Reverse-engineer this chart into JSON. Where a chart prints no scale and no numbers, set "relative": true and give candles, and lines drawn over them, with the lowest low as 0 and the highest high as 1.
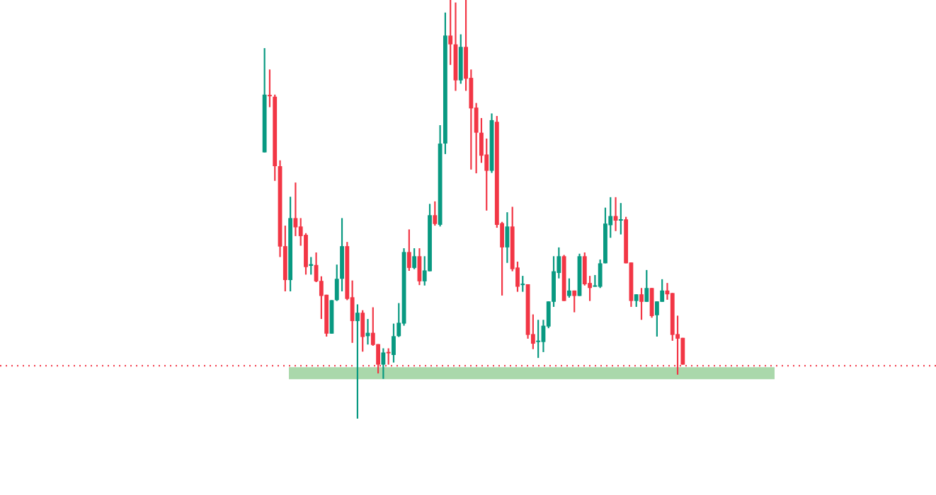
{
  "chart_data": {
    "type": "candlestick",
    "relative": true,
    "categories": [
      null,
      null,
      null,
      null,
      null,
      null,
      null,
      null,
      null,
      null,
      null,
      null,
      null,
      null,
      null,
      null,
      null,
      null,
      null,
      null,
      null,
      null,
      null,
      null,
      null,
      null,
      null,
      null,
      null,
      null,
      null,
      null,
      null,
      null,
      null,
      null,
      null,
      null,
      null,
      null,
      null,
      null,
      null,
      null,
      null,
      null,
      null,
      null,
      null,
      null,
      null,
      null,
      null,
      null,
      null,
      null,
      null,
      null,
      null,
      null,
      null,
      null,
      null,
      null,
      null,
      null,
      null,
      null,
      null,
      null,
      null,
      null,
      null,
      null,
      null,
      null,
      null,
      null,
      null,
      null,
      null,
      null
    ],
    "series": [
      {
        "colors": [
          "#089981",
          "#f23645",
          "#f23645",
          "#f23645",
          "#f23645",
          "#089981",
          "#f23645",
          "#f23645",
          "#f23645",
          "#089981",
          "#f23645",
          "#f23645",
          "#f23645",
          "#089981",
          "#089981",
          "#089981",
          "#f23645",
          "#f23645",
          "#089981",
          "#f23645",
          "#089981",
          "#f23645",
          "#f23645",
          "#089981",
          "#f23645",
          "#089981",
          "#089981",
          "#089981",
          "#f23645",
          "#089981",
          "#f23645",
          "#089981",
          "#089981",
          "#f23645",
          "#089981",
          "#089981",
          "#f23645",
          "#f23645",
          "#089981",
          "#f23645",
          "#f23645",
          "#f23645",
          "#f23645",
          "#f23645",
          "#089981",
          "#f23645",
          "#f23645",
          "#089981",
          "#f23645",
          "#f23645",
          "#089981",
          "#f23645",
          "#f23645",
          "#089981",
          "#089981",
          "#089981",
          "#089981",
          "#089981",
          "#f23645",
          "#089981",
          "#f23645",
          "#089981",
          "#f23645",
          "#f23645",
          "#089981",
          "#089981",
          "#089981",
          "#089981",
          "#f23645",
          "#089981",
          "#f23645",
          "#f23645",
          "#089981",
          "#f23645",
          "#089981",
          "#f23645",
          "#089981",
          "#089981",
          "#f23645",
          "#f23645",
          "#f23645",
          "#f23645"
        ],
        "ohlc": [
          [
            0.636,
            0.885,
            0.636,
            0.774
          ],
          [
            0.772,
            0.834,
            0.744,
            0.77
          ],
          [
            0.769,
            0.774,
            0.568,
            0.603
          ],
          [
            0.603,
            0.617,
            0.386,
            0.411
          ],
          [
            0.412,
            0.461,
            0.304,
            0.331
          ],
          [
            0.331,
            0.53,
            0.304,
            0.479
          ],
          [
            0.479,
            0.564,
            0.436,
            0.457
          ],
          [
            0.459,
            0.479,
            0.413,
            0.436
          ],
          [
            0.439,
            0.443,
            0.344,
            0.362
          ],
          [
            0.365,
            0.386,
            0.344,
            0.369
          ],
          [
            0.367,
            0.397,
            0.326,
            0.328
          ],
          [
            0.329,
            0.34,
            0.238,
            0.293
          ],
          [
            0.296,
            0.296,
            0.196,
            0.203
          ],
          [
            0.203,
            0.283,
            0.203,
            0.283
          ],
          [
            0.283,
            0.368,
            0.281,
            0.334
          ],
          [
            0.334,
            0.479,
            0.304,
            0.412
          ],
          [
            0.412,
            0.422,
            0.283,
            0.286
          ],
          [
            0.29,
            0.33,
            0.181,
            0.233
          ],
          [
            0.233,
            0.273,
            0,
            0.253
          ],
          [
            0.253,
            0.259,
            0.16,
            0.195
          ],
          [
            0.197,
            0.238,
            0.177,
            0.205
          ],
          [
            0.205,
            0.266,
            0.174,
            0.176
          ],
          [
            0.178,
            0.178,
            0.108,
            0.129
          ],
          [
            0.129,
            0.168,
            0.095,
            0.158
          ],
          [
            0.158,
            0.168,
            0.129,
            0.156
          ],
          [
            0.152,
            0.227,
            0.134,
            0.197
          ],
          [
            0.197,
            0.276,
            0.195,
            0.229
          ],
          [
            0.227,
            0.407,
            0.222,
            0.398
          ],
          [
            0.398,
            0.452,
            0.353,
            0.36
          ],
          [
            0.36,
            0.407,
            0.357,
            0.388
          ],
          [
            0.388,
            0.407,
            0.319,
            0.328
          ],
          [
            0.328,
            0.388,
            0.318,
            0.354
          ],
          [
            0.352,
            0.513,
            0.352,
            0.486
          ],
          [
            0.486,
            0.519,
            0.461,
            0.465
          ],
          [
            0.463,
            0.701,
            0.459,
            0.657
          ],
          [
            0.657,
            0.97,
            0.632,
            0.915
          ],
          [
            0.915,
            1,
            0.845,
            0.894
          ],
          [
            0.894,
            0.994,
            0.783,
            0.808
          ],
          [
            0.808,
            0.918,
            0.8,
            0.888
          ],
          [
            0.888,
            1,
            0.783,
            0.812
          ],
          [
            0.814,
            0.834,
            0.595,
            0.741
          ],
          [
            0.743,
            0.754,
            0.586,
            0.683
          ],
          [
            0.683,
            0.718,
            0.611,
            0.628
          ],
          [
            0.631,
            0.669,
            0.497,
            0.592
          ],
          [
            0.592,
            0.729,
            0.587,
            0.713
          ],
          [
            0.709,
            0.723,
            0.456,
            0.463
          ],
          [
            0.467,
            0.47,
            0.294,
            0.409
          ],
          [
            0.409,
            0.493,
            0.372,
            0.459
          ],
          [
            0.459,
            0.506,
            0.352,
            0.357
          ],
          [
            0.361,
            0.375,
            0.303,
            0.315
          ],
          [
            0.319,
            0.341,
            0.303,
            0.321
          ],
          [
            0.321,
            0.321,
            0.191,
            0.2
          ],
          [
            0.202,
            0.249,
            0.166,
            0.179
          ],
          [
            0.183,
            0.236,
            0.145,
            0.185
          ],
          [
            0.183,
            0.236,
            0.159,
            0.222
          ],
          [
            0.22,
            0.28,
            0.216,
            0.28
          ],
          [
            0.279,
            0.388,
            0.267,
            0.352
          ],
          [
            0.348,
            0.409,
            0.335,
            0.388
          ],
          [
            0.388,
            0.391,
            0.281,
            0.281
          ],
          [
            0.293,
            0.335,
            0.289,
            0.306
          ],
          [
            0.306,
            0.306,
            0.254,
            0.293
          ],
          [
            0.293,
            0.394,
            0.293,
            0.388
          ],
          [
            0.388,
            0.397,
            0.318,
            0.321
          ],
          [
            0.324,
            0.341,
            0.281,
            0.312
          ],
          [
            0.315,
            0.343,
            0.315,
            0.317
          ],
          [
            0.315,
            0.38,
            0.312,
            0.371
          ],
          [
            0.371,
            0.504,
            0.371,
            0.466
          ],
          [
            0.462,
            0.529,
            0.432,
            0.484
          ],
          [
            0.484,
            0.529,
            0.448,
            0.473
          ],
          [
            0.473,
            0.515,
            0.44,
            0.476
          ],
          [
            0.476,
            0.482,
            0.371,
            0.371
          ],
          [
            0.373,
            0.373,
            0.267,
            0.281
          ],
          [
            0.281,
            0.297,
            0.267,
            0.297
          ],
          [
            0.297,
            0.312,
            0.236,
            0.279
          ],
          [
            0.279,
            0.355,
            0.279,
            0.312
          ],
          [
            0.312,
            0.312,
            0.241,
            0.245
          ],
          [
            0.247,
            0.28,
            0.196,
            0.28
          ],
          [
            0.279,
            0.333,
            0.279,
            0.306
          ],
          [
            0.306,
            0.324,
            0.284,
            0.297
          ],
          [
            0.3,
            0.3,
            0.186,
            0.2
          ],
          [
            0.202,
            0.246,
            0.105,
            0.191
          ],
          [
            0.193,
            0.193,
            0.129,
            0.129
          ]
        ]
      }
    ],
    "ref_lines": [
      {
        "axis": "y",
        "value": 0.128,
        "color": "#f23645",
        "line_style": "dotted"
      }
    ],
    "bands": [
      {
        "axis": "y",
        "from": 0.094,
        "to": 0.123,
        "color": "#a5d6a7"
      }
    ]
  }
}
